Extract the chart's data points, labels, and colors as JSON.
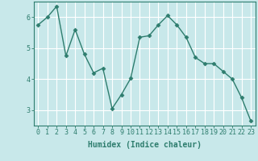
{
  "x": [
    0,
    1,
    2,
    3,
    4,
    5,
    6,
    7,
    8,
    9,
    10,
    11,
    12,
    13,
    14,
    15,
    16,
    17,
    18,
    19,
    20,
    21,
    22,
    23
  ],
  "y": [
    5.75,
    6.0,
    6.35,
    4.75,
    5.6,
    4.8,
    4.2,
    4.35,
    3.05,
    3.5,
    4.02,
    5.35,
    5.4,
    5.75,
    6.05,
    5.75,
    5.35,
    4.7,
    4.5,
    4.5,
    4.25,
    4.0,
    3.4,
    2.65
  ],
  "line_color": "#2e7d6e",
  "marker": "D",
  "marker_size": 2.5,
  "bg_color": "#c8e8ea",
  "grid_color": "#ffffff",
  "axis_color": "#2e7d6e",
  "xlabel": "Humidex (Indice chaleur)",
  "xlim": [
    -0.5,
    23.5
  ],
  "ylim": [
    2.5,
    6.5
  ],
  "yticks": [
    3,
    4,
    5,
    6
  ],
  "xticks": [
    0,
    1,
    2,
    3,
    4,
    5,
    6,
    7,
    8,
    9,
    10,
    11,
    12,
    13,
    14,
    15,
    16,
    17,
    18,
    19,
    20,
    21,
    22,
    23
  ],
  "xlabel_fontsize": 7,
  "tick_fontsize": 6,
  "line_width": 1.0
}
